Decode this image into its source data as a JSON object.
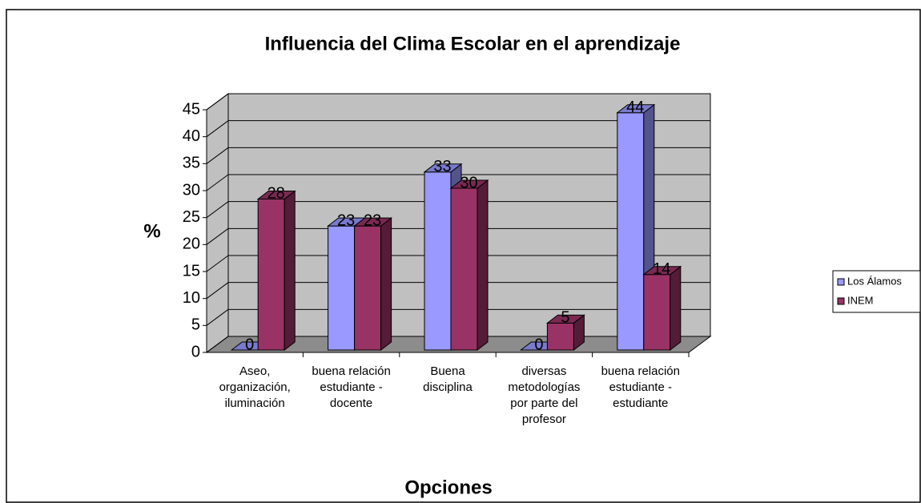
{
  "chart_data": {
    "type": "bar3d",
    "title": "Influencia del Clima Escolar en el aprendizaje",
    "x_label": "Opciones",
    "y_label": "%",
    "categories": [
      "Aseo, organización, iluminación",
      "buena relación estudiante - docente",
      "Buena disciplina",
      "diversas metodologías por parte del profesor",
      "buena relación estudiante - estudiante"
    ],
    "series": [
      {
        "name": "Los Álamos",
        "color": "#9999ff",
        "values": [
          0,
          23,
          33,
          0,
          44
        ]
      },
      {
        "name": "INEM",
        "color": "#993366",
        "values": [
          28,
          23,
          30,
          5,
          14
        ]
      }
    ],
    "ylim": [
      0,
      45
    ],
    "yticks": [
      0,
      5,
      10,
      15,
      20,
      25,
      30,
      35,
      40,
      45
    ],
    "grid": true,
    "legend": "right"
  }
}
